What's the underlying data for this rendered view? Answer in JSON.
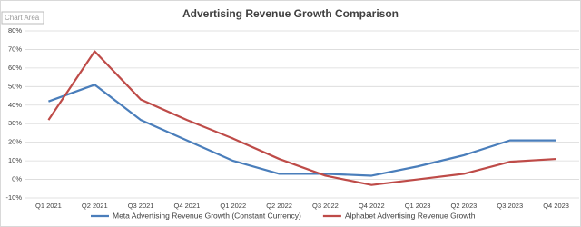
{
  "tooltip": "Chart Area",
  "chart_data": {
    "type": "line",
    "title": "Advertising Revenue Growth Comparison",
    "categories": [
      "Q1 2021",
      "Q2 2021",
      "Q3 2021",
      "Q4 2021",
      "Q1 2022",
      "Q2 2022",
      "Q3 2022",
      "Q4 2022",
      "Q1 2023",
      "Q2 2023",
      "Q3 2023",
      "Q4 2023"
    ],
    "series": [
      {
        "name": "Meta Advertising Revenue Growth (Constant Currency)",
        "color": "#4a7ebb",
        "values": [
          42,
          51,
          32,
          21,
          10,
          3,
          3,
          2,
          7,
          13,
          21,
          21
        ]
      },
      {
        "name": "Alphabet Advertising Revenue Growth",
        "color": "#be4b48",
        "values": [
          32,
          69,
          43,
          32,
          22,
          11,
          2,
          -3,
          0,
          3,
          9.5,
          11
        ]
      }
    ],
    "ylim": [
      -10,
      80
    ],
    "yticks": [
      {
        "value": -10,
        "label": "-10%"
      },
      {
        "value": 0,
        "label": "0%"
      },
      {
        "value": 10,
        "label": "10%"
      },
      {
        "value": 20,
        "label": "20%"
      },
      {
        "value": 30,
        "label": "30%"
      },
      {
        "value": 40,
        "label": "40%"
      },
      {
        "value": 50,
        "label": "50%"
      },
      {
        "value": 60,
        "label": "60%"
      },
      {
        "value": 70,
        "label": "70%"
      },
      {
        "value": 80,
        "label": "80%"
      }
    ],
    "grid": true,
    "legend": "bottom"
  }
}
